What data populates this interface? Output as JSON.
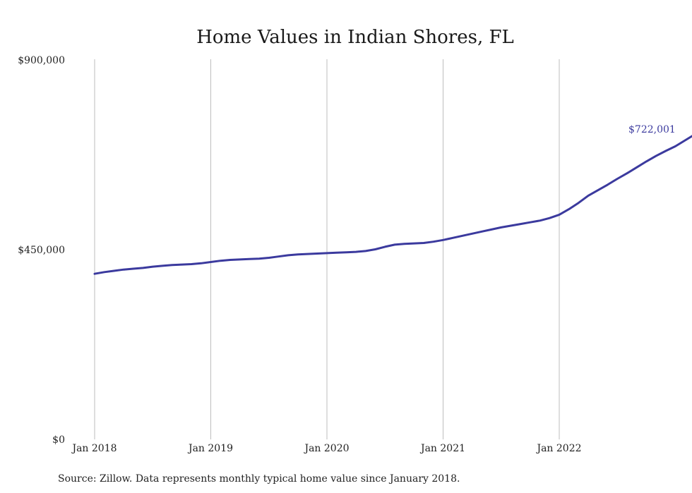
{
  "colors": {
    "line": "#3b3a9e",
    "grid": "#bdbdbd",
    "text": "#222222"
  },
  "chart_data": {
    "type": "line",
    "title": "Home Values in Indian Shores, FL",
    "xlabel": "",
    "ylabel": "",
    "x_tick_labels": [
      "Jan 2018",
      "Jan 2019",
      "Jan 2020",
      "Jan 2021",
      "Jan 2022"
    ],
    "y_tick_labels": [
      "$900,000",
      "$450,000",
      "$0"
    ],
    "y_ticks": [
      900000,
      450000,
      0
    ],
    "ylim": [
      0,
      900000
    ],
    "grid": "vertical",
    "end_label": "$722,001",
    "series": [
      {
        "values": [
          392000,
          396000,
          399000,
          402000,
          404000,
          406000,
          409000,
          411000,
          413000,
          414000,
          415000,
          417000,
          420000,
          423000,
          425000,
          426000,
          427000,
          428000,
          430000,
          433000,
          436000,
          438000,
          439000,
          440000,
          441000,
          442000,
          443000,
          444000,
          446000,
          450000,
          456000,
          461000,
          463000,
          464000,
          465000,
          468000,
          472000,
          477000,
          482000,
          487000,
          492000,
          497000,
          502000,
          506000,
          510000,
          514000,
          518000,
          524000,
          532000,
          545000,
          560000,
          577000,
          590000,
          603000,
          617000,
          630000,
          644000,
          658000,
          671000,
          683000,
          694000,
          708000,
          722001
        ]
      }
    ]
  },
  "footer": {
    "source": "Source: Zillow. Data represents monthly typical home value since January 2018."
  }
}
